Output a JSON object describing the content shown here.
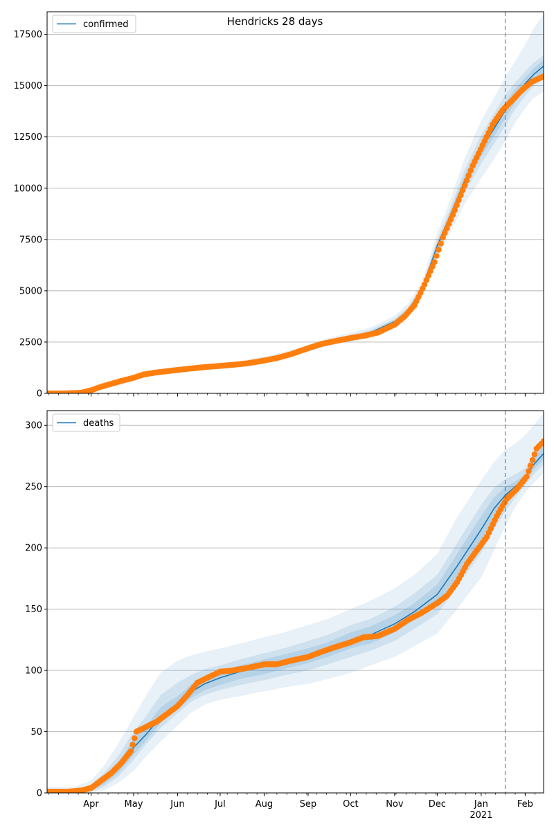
{
  "title": "Hendricks 28 days",
  "colors": {
    "model": "#1f77b4",
    "observed": "#ff7f0e",
    "band": "#1f77b4",
    "grid": "#b0b0b0",
    "forecast_line": "#1f77b4"
  },
  "x_axis": {
    "start": "2020-03-01",
    "end": "2021-02-14",
    "month_ticks": [
      {
        "date": "2020-04-01",
        "label": "Apr"
      },
      {
        "date": "2020-05-01",
        "label": "May"
      },
      {
        "date": "2020-06-01",
        "label": "Jun"
      },
      {
        "date": "2020-07-01",
        "label": "Jul"
      },
      {
        "date": "2020-08-01",
        "label": "Aug"
      },
      {
        "date": "2020-09-01",
        "label": "Sep"
      },
      {
        "date": "2020-10-01",
        "label": "Oct"
      },
      {
        "date": "2020-11-01",
        "label": "Nov"
      },
      {
        "date": "2020-12-01",
        "label": "Dec"
      },
      {
        "date": "2021-01-01",
        "label": "Jan"
      },
      {
        "date": "2021-02-01",
        "label": "Feb"
      }
    ],
    "year_label": "2021",
    "forecast_start": "2021-01-18"
  },
  "chart_data": [
    {
      "type": "line",
      "legend": "confirmed",
      "legend_position": "upper-left",
      "ylim": [
        0,
        18600
      ],
      "yticks": [
        0,
        2500,
        5000,
        7500,
        10000,
        12500,
        15000,
        17500
      ],
      "grid": "horizontal",
      "model": {
        "x": [
          "2020-03-01",
          "2020-03-20",
          "2020-04-01",
          "2020-04-15",
          "2020-05-01",
          "2020-05-15",
          "2020-06-01",
          "2020-06-15",
          "2020-07-01",
          "2020-07-15",
          "2020-08-01",
          "2020-08-15",
          "2020-09-01",
          "2020-09-15",
          "2020-10-01",
          "2020-10-15",
          "2020-11-01",
          "2020-11-10",
          "2020-11-20",
          "2020-12-01",
          "2020-12-10",
          "2020-12-20",
          "2021-01-01",
          "2021-01-10",
          "2021-01-18",
          "2021-01-25",
          "2021-02-01",
          "2021-02-07",
          "2021-02-14"
        ],
        "y": [
          0,
          10,
          120,
          450,
          720,
          1000,
          1140,
          1230,
          1310,
          1420,
          1600,
          1830,
          2180,
          2480,
          2720,
          2960,
          3500,
          4000,
          5000,
          7200,
          8600,
          10300,
          11900,
          12900,
          13800,
          14500,
          15100,
          15550,
          15950
        ],
        "bands": [
          {
            "level": "outer",
            "lower": [
              0,
              0,
              60,
              350,
              600,
              870,
              1010,
              1100,
              1180,
              1280,
              1450,
              1680,
              2010,
              2300,
              2520,
              2750,
              3250,
              3700,
              4650,
              6650,
              7800,
              9200,
              10500,
              11400,
              12300,
              13200,
              13900,
              14400,
              14700
            ],
            "upper": [
              0,
              30,
              220,
              580,
              880,
              1150,
              1300,
              1390,
              1470,
              1590,
              1780,
              2020,
              2380,
              2690,
              2950,
              3210,
              3780,
              4330,
              5400,
              7800,
              9400,
              11400,
              13300,
              14400,
              15400,
              16200,
              17000,
              17800,
              18500
            ]
          },
          {
            "level": "middle",
            "lower": [
              0,
              2,
              90,
              400,
              660,
              930,
              1080,
              1160,
              1240,
              1350,
              1520,
              1750,
              2090,
              2380,
              2610,
              2850,
              3370,
              3850,
              4820,
              6920,
              8200,
              9750,
              11200,
              12150,
              13050,
              13850,
              14500,
              14980,
              15330
            ],
            "upper": [
              0,
              20,
              160,
              510,
              790,
              1070,
              1210,
              1310,
              1390,
              1500,
              1690,
              1920,
              2280,
              2590,
              2840,
              3090,
              3640,
              4170,
              5200,
              7500,
              9000,
              10850,
              12600,
              13650,
              14550,
              15150,
              15700,
              16120,
              16500
            ]
          },
          {
            "level": "inner",
            "lower": [
              0,
              5,
              105,
              425,
              690,
              965,
              1110,
              1195,
              1275,
              1385,
              1560,
              1790,
              2135,
              2430,
              2665,
              2905,
              3435,
              3925,
              4910,
              7060,
              8400,
              10030,
              11550,
              12520,
              13420,
              14170,
              14800,
              15260,
              15640
            ],
            "upper": [
              0,
              15,
              140,
              480,
              755,
              1035,
              1175,
              1270,
              1350,
              1460,
              1645,
              1875,
              2230,
              2535,
              2780,
              3020,
              3570,
              4085,
              5100,
              7350,
              8800,
              10580,
              12250,
              13280,
              14180,
              14830,
              15400,
              15840,
              16260
            ]
          }
        ]
      },
      "observed": {
        "x": [
          "2020-03-01",
          "2020-03-15",
          "2020-03-25",
          "2020-04-01",
          "2020-04-08",
          "2020-04-15",
          "2020-04-22",
          "2020-05-01",
          "2020-05-08",
          "2020-05-15",
          "2020-05-22",
          "2020-06-01",
          "2020-06-10",
          "2020-06-20",
          "2020-07-01",
          "2020-07-10",
          "2020-07-20",
          "2020-08-01",
          "2020-08-10",
          "2020-08-20",
          "2020-09-01",
          "2020-09-10",
          "2020-09-20",
          "2020-10-01",
          "2020-10-10",
          "2020-10-20",
          "2020-11-01",
          "2020-11-08",
          "2020-11-15",
          "2020-11-22",
          "2020-11-29",
          "2020-12-05",
          "2020-12-12",
          "2020-12-19",
          "2020-12-26",
          "2021-01-02",
          "2021-01-09",
          "2021-01-16",
          "2021-01-23",
          "2021-01-30",
          "2021-02-06",
          "2021-02-14"
        ],
        "y": [
          0,
          0,
          30,
          150,
          320,
          460,
          600,
          760,
          920,
          1000,
          1060,
          1140,
          1210,
          1280,
          1340,
          1390,
          1460,
          1600,
          1720,
          1910,
          2200,
          2400,
          2550,
          2700,
          2800,
          2960,
          3350,
          3750,
          4300,
          5300,
          6400,
          7600,
          8700,
          9900,
          11100,
          12100,
          13100,
          13800,
          14300,
          14800,
          15200,
          15450
        ]
      }
    },
    {
      "type": "line",
      "legend": "deaths",
      "legend_position": "upper-left",
      "ylim": [
        0,
        312
      ],
      "yticks": [
        0,
        50,
        100,
        150,
        200,
        250,
        300
      ],
      "grid": "horizontal",
      "model": {
        "x": [
          "2020-03-01",
          "2020-03-20",
          "2020-04-01",
          "2020-04-10",
          "2020-04-20",
          "2020-05-01",
          "2020-05-10",
          "2020-05-20",
          "2020-06-01",
          "2020-06-10",
          "2020-06-20",
          "2020-07-01",
          "2020-07-15",
          "2020-08-01",
          "2020-08-15",
          "2020-09-01",
          "2020-09-15",
          "2020-10-01",
          "2020-10-15",
          "2020-11-01",
          "2020-11-15",
          "2020-12-01",
          "2020-12-15",
          "2021-01-01",
          "2021-01-10",
          "2021-01-18",
          "2021-01-25",
          "2021-02-01",
          "2021-02-07",
          "2021-02-14"
        ],
        "y": [
          0,
          0,
          4,
          10,
          20,
          37,
          48,
          62,
          72,
          82,
          89,
          94,
          99,
          103,
          107,
          112,
          117,
          124,
          129,
          138,
          148,
          162,
          185,
          215,
          232,
          243,
          250,
          257,
          268,
          277
        ],
        "bands": [
          {
            "level": "outer",
            "lower": [
              0,
              0,
              0,
              2,
              8,
              18,
              30,
              42,
              55,
              65,
              72,
              76,
              79,
              83,
              86,
              89,
              93,
              98,
              104,
              111,
              120,
              130,
              150,
              176,
              198,
              218,
              233,
              245,
              253,
              261
            ],
            "upper": [
              5,
              5,
              10,
              22,
              40,
              62,
              80,
              98,
              108,
              112,
              115,
              118,
              122,
              127,
              131,
              137,
              142,
              150,
              157,
              167,
              178,
              195,
              225,
              255,
              270,
              280,
              285,
              292,
              300,
              310
            ]
          },
          {
            "level": "middle",
            "lower": [
              0,
              0,
              1,
              5,
              13,
              27,
              40,
              53,
              65,
              74,
              80,
              84,
              88,
              92,
              96,
              100,
              105,
              111,
              116,
              124,
              134,
              146,
              168,
              196,
              215,
              230,
              241,
              251,
              260,
              268
            ],
            "upper": [
              2,
              2,
              7,
              16,
              30,
              50,
              63,
              80,
              90,
              96,
              101,
              104,
              109,
              114,
              118,
              124,
              129,
              137,
              142,
              152,
              163,
              178,
              204,
              235,
              249,
              256,
              260,
              265,
              277,
              290
            ]
          },
          {
            "level": "inner",
            "lower": [
              0,
              0,
              2,
              7,
              16,
              31,
              43,
              57,
              68,
              77,
              84,
              88,
              93,
              97,
              101,
              106,
              111,
              118,
              122,
              131,
              141,
              154,
              176,
              205,
              223,
              236,
              246,
              254,
              264,
              272
            ],
            "upper": [
              1,
              1,
              6,
              13,
              25,
              44,
              55,
              70,
              79,
              88,
              95,
              100,
              104,
              109,
              113,
              118,
              123,
              131,
              136,
              145,
              155,
              170,
              195,
              226,
              241,
              250,
              254,
              260,
              272,
              284
            ]
          }
        ]
      },
      "observed": {
        "x": [
          "2020-03-01",
          "2020-03-15",
          "2020-03-25",
          "2020-04-01",
          "2020-04-08",
          "2020-04-15",
          "2020-04-22",
          "2020-04-29",
          "2020-05-03",
          "2020-05-10",
          "2020-05-17",
          "2020-05-24",
          "2020-06-01",
          "2020-06-08",
          "2020-06-15",
          "2020-06-22",
          "2020-07-01",
          "2020-07-10",
          "2020-07-20",
          "2020-08-01",
          "2020-08-10",
          "2020-08-20",
          "2020-09-01",
          "2020-09-10",
          "2020-09-20",
          "2020-10-01",
          "2020-10-10",
          "2020-10-20",
          "2020-11-01",
          "2020-11-10",
          "2020-11-20",
          "2020-12-01",
          "2020-12-08",
          "2020-12-15",
          "2020-12-22",
          "2020-12-29",
          "2021-01-05",
          "2021-01-12",
          "2021-01-19",
          "2021-01-26",
          "2021-02-02",
          "2021-02-09",
          "2021-02-14"
        ],
        "y": [
          1,
          1,
          2,
          4,
          10,
          16,
          24,
          34,
          50,
          54,
          58,
          64,
          71,
          80,
          90,
          94,
          99,
          100,
          102,
          105,
          105,
          108,
          111,
          115,
          119,
          123,
          127,
          128,
          134,
          141,
          147,
          155,
          161,
          172,
          187,
          198,
          209,
          226,
          240,
          248,
          258,
          281,
          287
        ]
      }
    }
  ]
}
